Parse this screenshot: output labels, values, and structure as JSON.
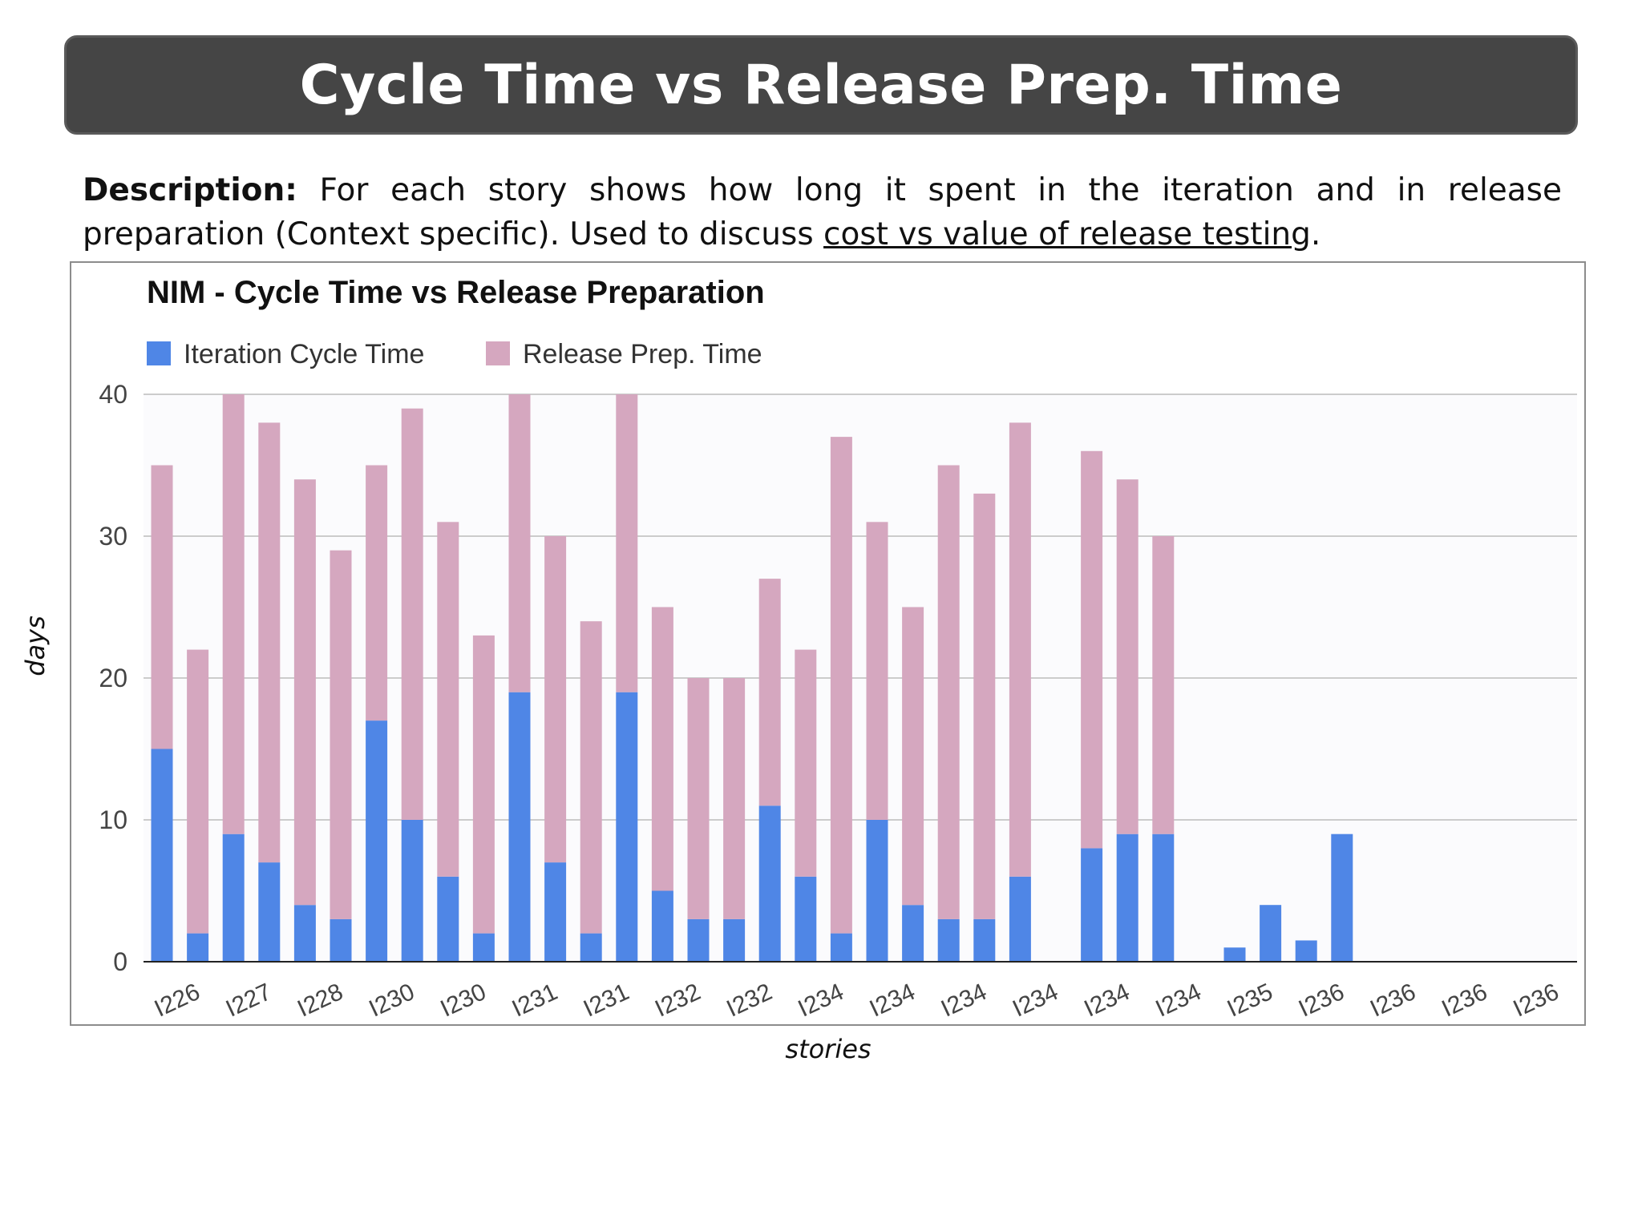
{
  "slide": {
    "title": "Cycle Time vs Release Prep. Time",
    "description_label": "Description:",
    "description_text": " For each story shows how long it spent in the iteration and in release preparation (Context specific). Used to discuss ",
    "description_link": "cost vs value of release testing",
    "description_end": ".",
    "axis_y_label": "days",
    "axis_x_label": "stories"
  },
  "colors": {
    "title_bar": "#454545",
    "iteration": "#4f86e6",
    "release": "#d5a7bf"
  },
  "chart_data": {
    "type": "bar",
    "stacked": true,
    "title": "NIM - Cycle Time vs Release Preparation",
    "legend_position": "top-left",
    "grid": true,
    "ylim": [
      0,
      40
    ],
    "yticks": [
      0,
      10,
      20,
      30,
      40
    ],
    "categories": [
      "I226",
      "I226",
      "I227",
      "I227",
      "I228",
      "I228",
      "I230",
      "I230",
      "I230",
      "I230",
      "I231",
      "I231",
      "I231",
      "I231",
      "I232",
      "I232",
      "I232",
      "I232",
      "I234",
      "I234",
      "I234",
      "I234",
      "I234",
      "I234",
      "I234",
      "I234",
      "I234",
      "I234",
      "I234",
      "I234",
      "I235",
      "I235",
      "I236",
      "I236",
      "I236",
      "I236",
      "I236",
      "I236",
      "I236",
      "I236"
    ],
    "tick_labels": [
      "I226",
      "I227",
      "I228",
      "I230",
      "I230",
      "I231",
      "I231",
      "I232",
      "I232",
      "I234",
      "I234",
      "I234",
      "I234",
      "I234",
      "I234",
      "I235",
      "I236",
      "I236",
      "I236",
      "I236"
    ],
    "series": [
      {
        "name": "Iteration Cycle Time",
        "color": "#4f86e6",
        "values": [
          15,
          2,
          9,
          7,
          4,
          3,
          17,
          10,
          6,
          2,
          19,
          7,
          2,
          19,
          5,
          3,
          3,
          11,
          6,
          2,
          10,
          4,
          3,
          3,
          6,
          0,
          8,
          9,
          9,
          0,
          1,
          4,
          1.5,
          9,
          0,
          0,
          0,
          0,
          0,
          0
        ]
      },
      {
        "name": "Release Prep. Time",
        "color": "#d5a7bf",
        "values": [
          20,
          20,
          31,
          31,
          30,
          26,
          18,
          29,
          25,
          21,
          21,
          23,
          22,
          21,
          20,
          17,
          17,
          16,
          16,
          35,
          21,
          21,
          32,
          30,
          32,
          0,
          28,
          25,
          21,
          0,
          0,
          0,
          0,
          0,
          0,
          0,
          0,
          0,
          0,
          0
        ]
      }
    ]
  }
}
